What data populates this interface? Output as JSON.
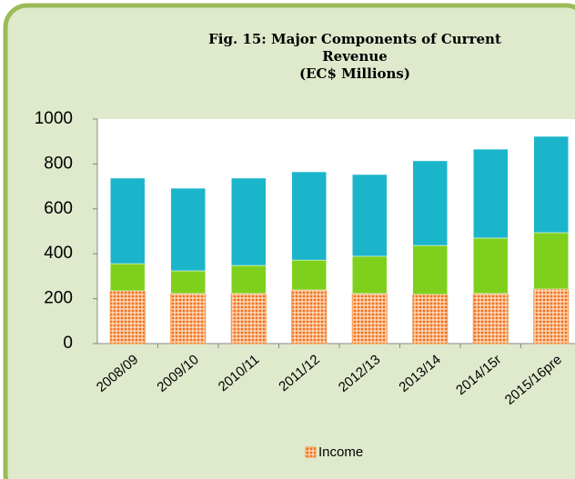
{
  "chart_data": {
    "type": "stacked_bar",
    "title": "Fig. 15: Major Components of Current Revenue",
    "subtitle": "(EC$ Millions)",
    "categories": [
      "2008/09",
      "2009/10",
      "2010/11",
      "2011/12",
      "2012/13",
      "2013/14",
      "2014/15r",
      "2015/16pre"
    ],
    "series": [
      {
        "name": "Income",
        "color": "#f79646",
        "values": [
          235,
          223,
          223,
          239,
          223,
          219,
          223,
          243
        ]
      },
      {
        "color": "#7fd01c",
        "values": [
          121,
          101,
          125,
          133,
          166,
          218,
          247,
          251
        ]
      },
      {
        "color": "#1bb5cb",
        "values": [
          381,
          368,
          389,
          393,
          364,
          377,
          396,
          429
        ]
      }
    ],
    "ylim": [
      0,
      1000
    ],
    "yticks": [
      0,
      200,
      400,
      600,
      800,
      1000
    ],
    "grid": false,
    "legend": "bottom"
  }
}
